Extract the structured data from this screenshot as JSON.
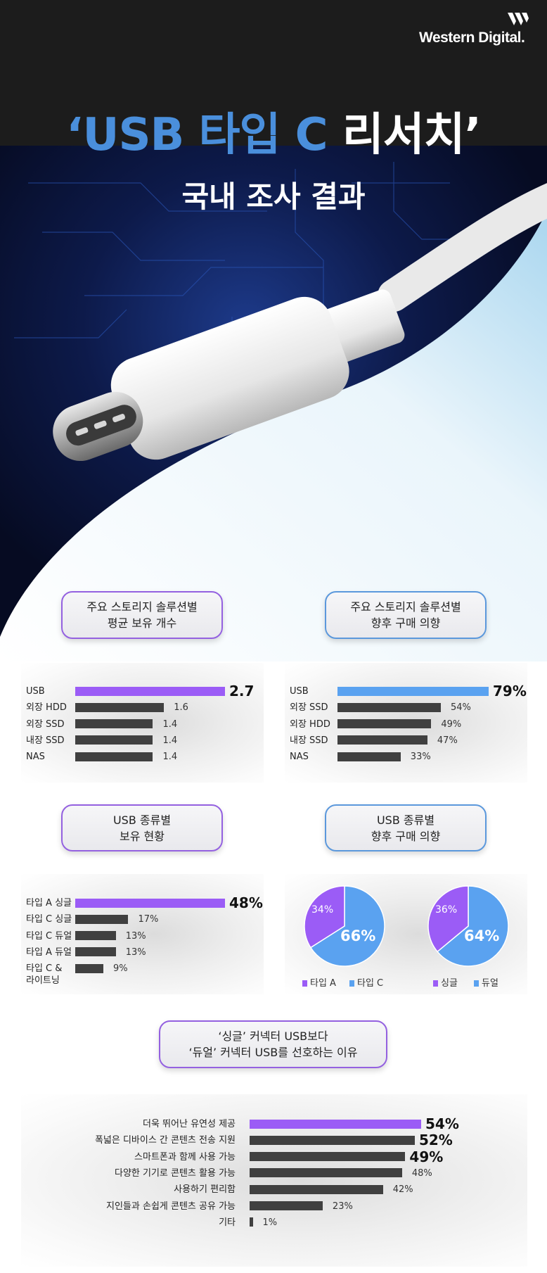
{
  "brand": {
    "name": "Western Digital."
  },
  "header": {
    "title_blue": "‘USB 타입 C",
    "title_white": "리서치’",
    "subtitle": "국내 조사 결과"
  },
  "colors": {
    "purple": "#9b5cf6",
    "blue": "#5aa2f0",
    "dark_bar": "#404040",
    "title_blue": "#4a8fdc"
  },
  "sections": {
    "s1": {
      "line1": "주요 스토리지 솔루션별",
      "line2": "평균 보유 개수"
    },
    "s2": {
      "line1": "주요 스토리지 솔루션별",
      "line2": "향후 구매 의향"
    },
    "s3": {
      "line1": "USB 종류별",
      "line2": "보유 현황"
    },
    "s4": {
      "line1": "USB 종류별",
      "line2": "향후 구매 의향"
    },
    "s5": {
      "line1": "‘싱글’ 커넥터 USB보다",
      "line2": "‘듀얼’ 커넥터 USB를 선호하는 이유"
    }
  },
  "chart_data": [
    {
      "type": "bar",
      "orientation": "horizontal",
      "categories": [
        "USB",
        "외장 HDD",
        "외장 SSD",
        "내장 SSD",
        "NAS"
      ],
      "values": [
        2.7,
        1.6,
        1.4,
        1.4,
        1.4
      ],
      "labels": [
        "2.7",
        "1.6",
        "1.4",
        "1.4",
        "1.4"
      ],
      "highlight_color": "#9b5cf6"
    },
    {
      "type": "bar",
      "orientation": "horizontal",
      "categories": [
        "USB",
        "외장 SSD",
        "외장 HDD",
        "내장 SSD",
        "NAS"
      ],
      "values": [
        79,
        54,
        49,
        47,
        33
      ],
      "labels": [
        "79%",
        "54%",
        "49%",
        "47%",
        "33%"
      ],
      "highlight_color": "#5aa2f0"
    },
    {
      "type": "bar",
      "orientation": "horizontal",
      "categories": [
        "타입 A 싱글",
        "타입 C 싱글",
        "타입 C 듀얼",
        "타입 A 듀얼",
        "타입 C & 라이트닝"
      ],
      "values": [
        48,
        17,
        13,
        13,
        9
      ],
      "labels": [
        "48%",
        "17%",
        "13%",
        "13%",
        "9%"
      ],
      "highlight_color": "#9b5cf6"
    },
    {
      "type": "pie",
      "slices": [
        {
          "name": "타입 A",
          "value": 34,
          "label": "34%",
          "color": "#9b5cf6"
        },
        {
          "name": "타입 C",
          "value": 66,
          "label": "66%",
          "color": "#5aa2f0"
        }
      ]
    },
    {
      "type": "pie",
      "slices": [
        {
          "name": "싱글",
          "value": 36,
          "label": "36%",
          "color": "#9b5cf6"
        },
        {
          "name": "듀얼",
          "value": 64,
          "label": "64%",
          "color": "#5aa2f0"
        }
      ]
    },
    {
      "type": "bar",
      "orientation": "horizontal",
      "categories": [
        "더욱 뛰어난 유연성 제공",
        "폭넓은 디바이스 간 콘텐츠 전송 지원",
        "스마트폰과 함께 사용 가능",
        "다양한 기기로 콘텐츠 활용 가능",
        "사용하기 편리함",
        "지인들과 손쉽게 콘텐츠 공유 가능",
        "기타"
      ],
      "values": [
        54,
        52,
        49,
        48,
        42,
        23,
        1
      ],
      "labels": [
        "54%",
        "52%",
        "49%",
        "48%",
        "42%",
        "23%",
        "1%"
      ],
      "highlight_color": "#9b5cf6"
    }
  ]
}
